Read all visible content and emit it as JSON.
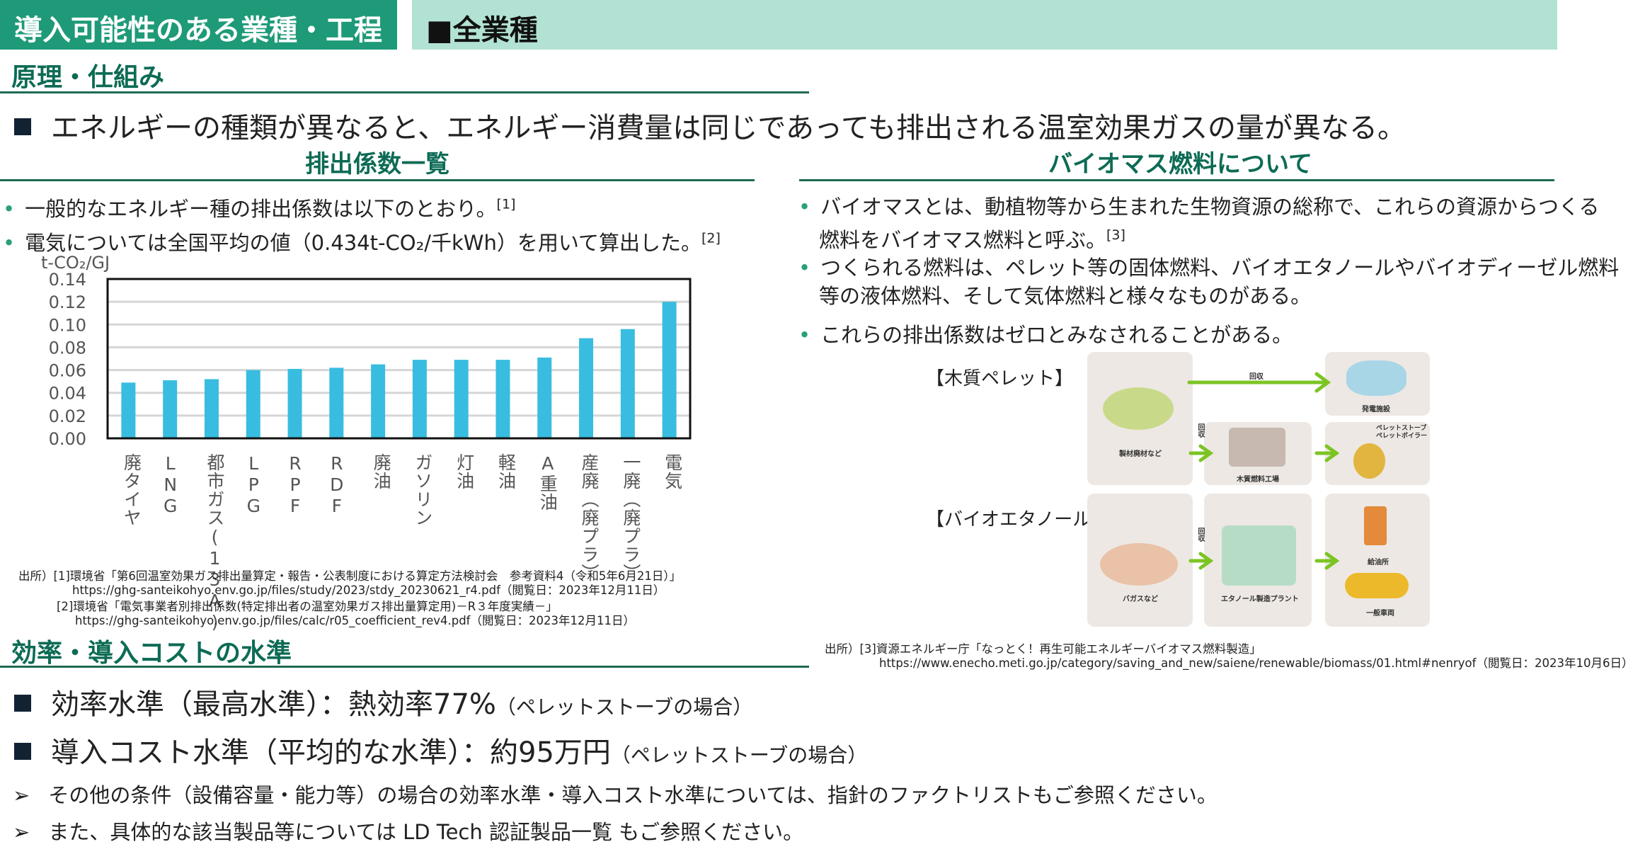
{
  "header": {
    "category_label": "導入可能性のある業種・工程",
    "category_value": "■全業種"
  },
  "principle": {
    "title": "原理・仕組み",
    "summary": "エネルギーの種類が異なると、エネルギー消費量は同じであっても排出される温室効果ガスの量が異なる。"
  },
  "emission": {
    "title": "排出係数一覧",
    "bullets": [
      {
        "text": "一般的なエネルギー種の排出係数は以下のとおり。",
        "ref": "[1]"
      },
      {
        "text": "電気については全国平均の値（0.434t-CO₂/千kWh）を用いて算出した。",
        "ref": "[2]"
      }
    ],
    "citations": [
      "出所）[1]環境省「第6回温室効果ガス排出量算定・報告・公表制度における算定方法検討会　参考資料4（令和5年6月21日）」",
      "https://ghg-santeikohyo.env.go.jp/files/study/2023/stdy_20230621_r4.pdf（閲覧日：2023年12月11日）",
      "[2]環境省「電気事業者別排出係数(特定排出者の温室効果ガス排出量算定用)－R３年度実績－」",
      "https://ghg-santeikohyo.env.go.jp/files/calc/r05_coefficient_rev4.pdf（閲覧日：2023年12月11日）"
    ]
  },
  "chart_data": {
    "type": "bar",
    "ylabel": "t-CO₂/GJ",
    "ylim": [
      0,
      0.14
    ],
    "yticks": [
      "0.14",
      "0.12",
      "0.10",
      "0.08",
      "0.06",
      "0.04",
      "0.02",
      "0.00"
    ],
    "grid": true,
    "bar_color": "#38bde0",
    "categories": [
      "廃タイヤ",
      "LNG",
      "都市ガス(13A)",
      "LPG",
      "RPF",
      "RDF",
      "廃油",
      "ガソリン",
      "灯油",
      "軽油",
      "A重油",
      "産廃（廃プラ）",
      "一廃（廃プラ）",
      "電気"
    ],
    "values": [
      0.049,
      0.051,
      0.052,
      0.06,
      0.061,
      0.062,
      0.065,
      0.069,
      0.069,
      0.069,
      0.071,
      0.088,
      0.096,
      0.12
    ]
  },
  "biomass": {
    "title": "バイオマス燃料について",
    "bullets": [
      {
        "text": "バイオマスとは、動植物等から生まれた生物資源の総称で、これらの資源からつくる",
        "text2": "燃料をバイオマス燃料と呼ぶ。",
        "ref": "[3]"
      },
      {
        "text": "つくられる燃料は、ペレット等の固体燃料、バイオエタノールやバイオディーゼル燃料",
        "text2": "等の液体燃料、そして気体燃料と様々なものがある。"
      },
      {
        "text": "これらの排出係数はゼロとみなされることがある。"
      }
    ],
    "diagram": {
      "pellet_label": "【木質ペレット】",
      "ethanol_label": "【バイオエタノール】",
      "collect": "回収",
      "sawmill_waste": "製材廃材など",
      "power_plant": "発電施設",
      "wood_fuel_factory": "木質燃料工場",
      "stove": "ペレットストーブ",
      "boiler": "ペレットボイラー",
      "bagasse": "バガスなど",
      "ethanol_plant": "エタノール製造プラント",
      "gas_station": "給油所",
      "vehicle": "一般車両"
    },
    "citations": [
      "出所）[3]資源エネルギー庁「なっとく！再生可能エネルギーバイオマス燃料製造」",
      "https://www.enecho.meti.go.jp/category/saving_and_new/saiene/renewable/biomass/01.html#nenryof（閲覧日：2023年10月6日）"
    ]
  },
  "efficiency": {
    "title": "効率・導入コストの水準",
    "level_label": "効率水準（最高水準）：熱効率77%",
    "level_note": "（ペレットストーブの場合）",
    "cost_label": "導入コスト水準（平均的な水準）：約95万円",
    "cost_note": "（ペレットストーブの場合）",
    "notes": [
      "その他の条件（設備容量・能力等）の場合の効率水準・導入コスト水準については、指針のファクトリストもご参照ください。",
      "また、具体的な該当製品等については LD Tech 認証製品一覧 もご参照ください。"
    ]
  }
}
